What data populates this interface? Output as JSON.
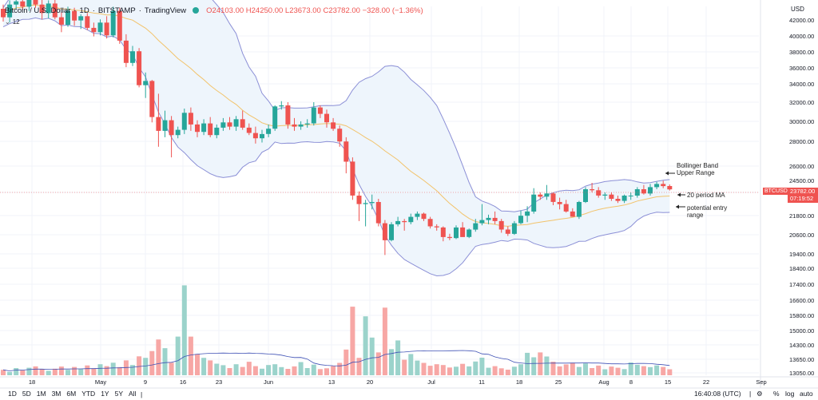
{
  "header": {
    "symbol": "Bitcoin / U.S. Dollar",
    "interval": "1D",
    "exchange": "BITSTAMP",
    "source": "TradingView",
    "ohlc": "O24103.00 H24250.00 L23673.00 C23782.00 −328.00 (−1.36%)",
    "indicator_value": "12"
  },
  "price_scale": {
    "currency": "USD",
    "current_symbol": "BTCUSD",
    "current_price": "23782.00",
    "countdown": "07:19:52"
  },
  "annotations": {
    "upper": "Bollinger Band\nUpper Range",
    "ma": "20 period MA",
    "entry": "potential entry\nrange"
  },
  "bottom_bar": {
    "timeframes": [
      "1D",
      "5D",
      "1M",
      "3M",
      "6M",
      "YTD",
      "1Y",
      "5Y",
      "All"
    ],
    "clock": "16:40:08 (UTC)",
    "percent": "%",
    "log": "log",
    "auto": "auto"
  },
  "colors": {
    "up": "#26a69a",
    "down": "#ef5350",
    "vol_up": "#9bd3cb",
    "vol_down": "#f7a7a5",
    "band": "#8b8fd6",
    "band_fill": "#eef5fc",
    "ma": "#f2c36b",
    "vol_ma": "#3f51b5"
  },
  "chart_data": {
    "type": "candlestick",
    "title": "Bitcoin / U.S. Dollar · 1D · BITSTAMP",
    "y_ticks": [
      42000,
      40000,
      38000,
      36000,
      34000,
      32000,
      30000,
      28000,
      26000,
      24500,
      23000,
      21800,
      20600,
      19400,
      18400,
      17400,
      16600,
      15800,
      15000,
      14300,
      13650,
      13050
    ],
    "x_ticks": [
      "18",
      "May",
      "9",
      "16",
      "23",
      "Jun",
      "13",
      "20",
      "Jul",
      "11",
      "18",
      "25",
      "Aug",
      "8",
      "15",
      "22",
      "Sep"
    ],
    "candles": [
      [
        40800,
        41200,
        39600,
        40000
      ],
      [
        40000,
        41600,
        39500,
        41200
      ],
      [
        41200,
        42100,
        40800,
        41500
      ],
      [
        41500,
        41800,
        40700,
        41000
      ],
      [
        41000,
        42300,
        40600,
        42000
      ],
      [
        42000,
        43000,
        40900,
        41200
      ],
      [
        41200,
        41800,
        39800,
        40400
      ],
      [
        40400,
        41600,
        39900,
        41300
      ],
      [
        41300,
        41800,
        39800,
        40000
      ],
      [
        40000,
        40500,
        38600,
        39300
      ],
      [
        39300,
        41000,
        39100,
        40600
      ],
      [
        40600,
        40900,
        39200,
        39700
      ],
      [
        39700,
        40300,
        38900,
        40100
      ],
      [
        40100,
        40400,
        38800,
        39000
      ],
      [
        39000,
        39500,
        38200,
        38600
      ],
      [
        38600,
        39800,
        38300,
        39500
      ],
      [
        39500,
        40100,
        38000,
        38300
      ],
      [
        38300,
        41000,
        38100,
        40600
      ],
      [
        40600,
        40900,
        37500,
        37800
      ],
      [
        37800,
        38400,
        35300,
        35700
      ],
      [
        35700,
        37300,
        35400,
        36800
      ],
      [
        36800,
        37100,
        33400,
        33600
      ],
      [
        33600,
        34800,
        32400,
        34000
      ],
      [
        34000,
        34100,
        30100,
        30600
      ],
      [
        30600,
        32800,
        27800,
        29300
      ],
      [
        29300,
        31200,
        28700,
        30300
      ],
      [
        30300,
        30700,
        26800,
        28900
      ],
      [
        28900,
        29700,
        28600,
        29400
      ],
      [
        29400,
        31400,
        29000,
        31000
      ],
      [
        31000,
        31500,
        29300,
        29900
      ],
      [
        29900,
        30300,
        28700,
        29200
      ],
      [
        29200,
        30400,
        28900,
        30000
      ],
      [
        30000,
        30600,
        28700,
        28900
      ],
      [
        28900,
        29900,
        28600,
        29600
      ],
      [
        29600,
        30500,
        29300,
        30100
      ],
      [
        30100,
        30600,
        29400,
        29700
      ],
      [
        29700,
        30700,
        29300,
        30400
      ],
      [
        30400,
        31200,
        29400,
        29600
      ],
      [
        29600,
        30000,
        28900,
        29100
      ],
      [
        29100,
        29700,
        28100,
        28600
      ],
      [
        28600,
        29400,
        28200,
        29000
      ],
      [
        29000,
        29900,
        28700,
        29500
      ],
      [
        29500,
        31700,
        29300,
        31600
      ],
      [
        31600,
        32100,
        31300,
        31700
      ],
      [
        31700,
        32000,
        29500,
        29900
      ],
      [
        29900,
        30500,
        29300,
        29700
      ],
      [
        29700,
        30200,
        29400,
        29900
      ],
      [
        29900,
        30400,
        29600,
        30000
      ],
      [
        30000,
        32000,
        29800,
        31500
      ],
      [
        31500,
        31700,
        30500,
        30900
      ],
      [
        30900,
        31300,
        29600,
        30100
      ],
      [
        30100,
        30500,
        29300,
        29500
      ],
      [
        29500,
        29800,
        27800,
        28300
      ],
      [
        28300,
        28700,
        25300,
        26400
      ],
      [
        26400,
        26800,
        22800,
        23200
      ],
      [
        23200,
        23600,
        20800,
        22400
      ],
      [
        22400,
        22800,
        20300,
        22500
      ],
      [
        22500,
        23300,
        21900,
        22600
      ],
      [
        22600,
        22900,
        20300,
        20600
      ],
      [
        20600,
        20900,
        17600,
        19000
      ],
      [
        19000,
        20700,
        18900,
        20500
      ],
      [
        20500,
        21200,
        20300,
        20800
      ],
      [
        20800,
        21000,
        19900,
        20700
      ],
      [
        20700,
        21500,
        20500,
        21200
      ],
      [
        21200,
        21700,
        20900,
        21500
      ],
      [
        21500,
        21600,
        20800,
        21000
      ],
      [
        21000,
        21200,
        20100,
        20300
      ],
      [
        20300,
        20500,
        19900,
        20200
      ],
      [
        20200,
        20300,
        18900,
        19300
      ],
      [
        19300,
        19600,
        19000,
        19200
      ],
      [
        19200,
        20400,
        19100,
        20200
      ],
      [
        20200,
        20700,
        19400,
        19300
      ],
      [
        19300,
        20100,
        19200,
        20000
      ],
      [
        20000,
        21000,
        19800,
        20600
      ],
      [
        20600,
        22400,
        20400,
        20900
      ],
      [
        20900,
        21400,
        20500,
        21100
      ],
      [
        21100,
        21700,
        20500,
        20800
      ],
      [
        20800,
        21000,
        19700,
        20000
      ],
      [
        20000,
        20300,
        19400,
        19600
      ],
      [
        19600,
        20800,
        19500,
        20600
      ],
      [
        20600,
        21800,
        20500,
        21300
      ],
      [
        21300,
        22200,
        20700,
        21700
      ],
      [
        21700,
        23900,
        21500,
        23300
      ],
      [
        23300,
        23500,
        22800,
        23100
      ],
      [
        23100,
        24200,
        22800,
        23400
      ],
      [
        23400,
        23500,
        22300,
        22600
      ],
      [
        22600,
        23000,
        21900,
        22400
      ],
      [
        22400,
        22800,
        21600,
        21700
      ],
      [
        21700,
        22000,
        21200,
        21200
      ],
      [
        21200,
        22700,
        21000,
        22600
      ],
      [
        22600,
        24000,
        22500,
        23800
      ],
      [
        23800,
        24400,
        23500,
        23700
      ],
      [
        23700,
        24000,
        23000,
        23200
      ],
      [
        23200,
        23500,
        22800,
        23300
      ],
      [
        23300,
        23500,
        22700,
        22900
      ],
      [
        22900,
        23200,
        22500,
        22700
      ],
      [
        22700,
        23300,
        22500,
        23200
      ],
      [
        23200,
        23500,
        22800,
        23200
      ],
      [
        23200,
        24000,
        23000,
        23800
      ],
      [
        23800,
        24200,
        23300,
        23400
      ],
      [
        23400,
        24300,
        23200,
        24000
      ],
      [
        24000,
        24500,
        23800,
        24300
      ],
      [
        24300,
        24600,
        23900,
        24100
      ],
      [
        24100,
        24250,
        23673,
        23782
      ]
    ],
    "volume_range": [
      13050,
      17800
    ],
    "volumes": [
      13330,
      13220,
      13420,
      13300,
      13440,
      13510,
      13360,
      13280,
      13390,
      13500,
      13330,
      13480,
      13370,
      13560,
      13410,
      13620,
      13520,
      13700,
      13470,
      13820,
      13580,
      14030,
      13950,
      14300,
      14900,
      14450,
      13700,
      15050,
      17700,
      15050,
      14150,
      13950,
      13820,
      13650,
      13570,
      13420,
      13620,
      13480,
      13750,
      13520,
      13390,
      13580,
      13620,
      13470,
      13380,
      13510,
      13730,
      13420,
      13600,
      13370,
      13410,
      13520,
      13690,
      14380,
      16600,
      13950,
      16100,
      15000,
      14230,
      16550,
      14400,
      14850,
      13850,
      14150,
      13810,
      13690,
      13540,
      13620,
      13580,
      13450,
      13490,
      13640,
      13510,
      13760,
      13960,
      13440,
      13520,
      13410,
      13340,
      13490,
      13620,
      14210,
      13980,
      14230,
      14020,
      13750,
      13510,
      13610,
      13700,
      13480,
      13660,
      13420,
      13550,
      13360,
      13500,
      13440,
      13370,
      13710,
      13590,
      13520,
      13470,
      13560,
      13480,
      13360
    ]
  }
}
